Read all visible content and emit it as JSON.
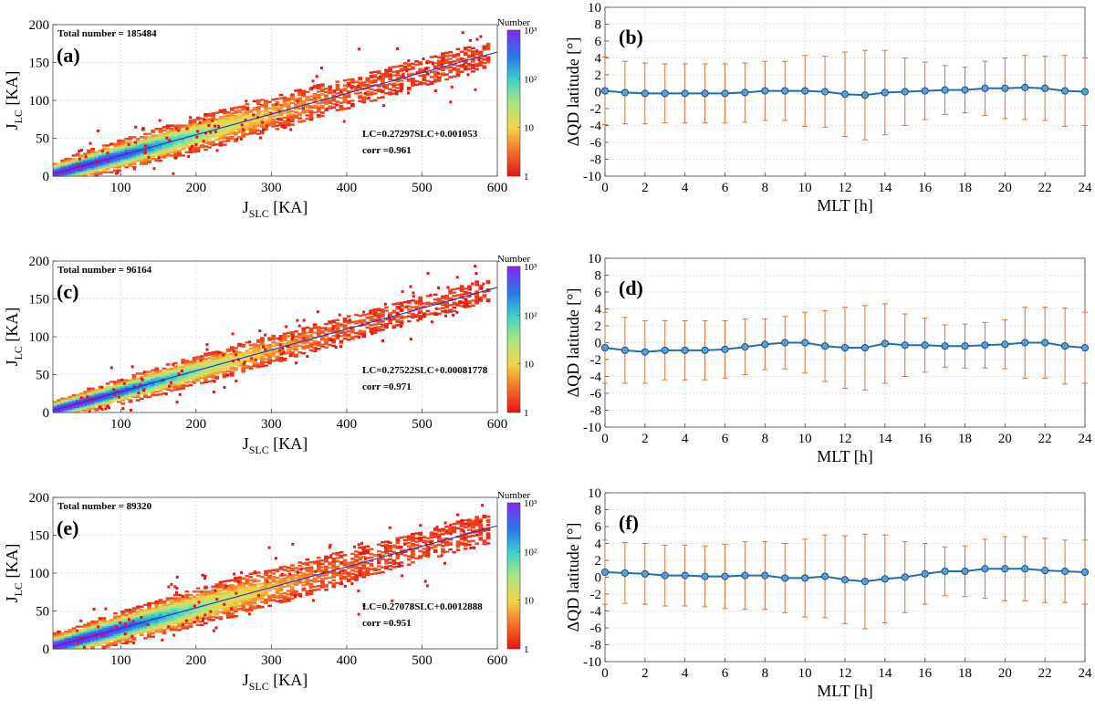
{
  "chart_data": [
    {
      "type": "heatmap",
      "panel": "(a)",
      "total_label": "Total number = 185484",
      "fit_label": "LC=0.27297SLC+0.001053",
      "corr_label": "corr =0.961",
      "fit": {
        "slope": 0.27297,
        "intercept": 0.001053
      },
      "spread": 12,
      "xlabel_main": "J",
      "xlabel_sub": "SLC",
      "xlabel_unit": " [KA]",
      "ylabel_main": "J",
      "ylabel_sub": "LC",
      "ylabel_unit": " [KA]",
      "xlim": [
        10,
        600
      ],
      "ylim": [
        0,
        200
      ],
      "xticks": [
        "100",
        "200",
        "300",
        "400",
        "500",
        "600"
      ],
      "yticks": [
        "0",
        "50",
        "100",
        "150",
        "200"
      ],
      "colorbar": {
        "title": "Number",
        "ticks": [
          "1",
          "10",
          "10²",
          "10³"
        ],
        "scale": "log",
        "range": [
          1,
          1000
        ]
      }
    },
    {
      "type": "line",
      "panel": "(b)",
      "xlabel": "MLT [h]",
      "ylabel": "ΔQD latitude [°]",
      "xlim": [
        0,
        24
      ],
      "ylim": [
        -10,
        10
      ],
      "xticks": [
        "0",
        "2",
        "4",
        "6",
        "8",
        "10",
        "12",
        "14",
        "16",
        "18",
        "20",
        "22",
        "24"
      ],
      "yticks": [
        "-10",
        "-8",
        "-6",
        "-4",
        "-2",
        "0",
        "2",
        "4",
        "6",
        "8",
        "10"
      ],
      "x": [
        0,
        1,
        2,
        3,
        4,
        5,
        6,
        7,
        8,
        9,
        10,
        11,
        12,
        13,
        14,
        15,
        16,
        17,
        18,
        19,
        20,
        21,
        22,
        23,
        24
      ],
      "y": [
        0.1,
        -0.1,
        -0.2,
        -0.2,
        -0.2,
        -0.2,
        -0.2,
        -0.1,
        0.1,
        0.1,
        0.1,
        0.0,
        -0.3,
        -0.4,
        -0.1,
        0.0,
        0.1,
        0.2,
        0.2,
        0.4,
        0.4,
        0.5,
        0.4,
        0.1,
        0.0
      ],
      "err": [
        4.0,
        3.7,
        3.6,
        3.5,
        3.5,
        3.5,
        3.5,
        3.5,
        3.5,
        3.5,
        4.2,
        4.2,
        5.0,
        5.3,
        5.0,
        4.0,
        3.4,
        2.9,
        2.7,
        3.2,
        3.6,
        3.8,
        3.8,
        4.2,
        4.0
      ]
    },
    {
      "type": "heatmap",
      "panel": "(c)",
      "total_label": "Total number = 96164",
      "fit_label": "LC=0.27522SLC+0.00081778",
      "corr_label": "corr =0.971",
      "fit": {
        "slope": 0.27522,
        "intercept": 0.00081778
      },
      "spread": 10,
      "xlabel_main": "J",
      "xlabel_sub": "SLC",
      "xlabel_unit": " [KA]",
      "ylabel_main": "J",
      "ylabel_sub": "LC",
      "ylabel_unit": " [KA]",
      "xlim": [
        10,
        600
      ],
      "ylim": [
        0,
        200
      ],
      "xticks": [
        "100",
        "200",
        "300",
        "400",
        "500",
        "600"
      ],
      "yticks": [
        "0",
        "50",
        "100",
        "150",
        "200"
      ],
      "colorbar": {
        "title": "Number",
        "ticks": [
          "1",
          "10",
          "10²",
          "10³"
        ],
        "scale": "log",
        "range": [
          1,
          1000
        ]
      }
    },
    {
      "type": "line",
      "panel": "(d)",
      "xlabel": "MLT [h]",
      "ylabel": "ΔQD latitude [°]",
      "xlim": [
        0,
        24
      ],
      "ylim": [
        -10,
        10
      ],
      "xticks": [
        "0",
        "2",
        "4",
        "6",
        "8",
        "10",
        "12",
        "14",
        "16",
        "18",
        "20",
        "22",
        "24"
      ],
      "yticks": [
        "-10",
        "-8",
        "-6",
        "-4",
        "-2",
        "0",
        "2",
        "4",
        "6",
        "8",
        "10"
      ],
      "x": [
        0,
        1,
        2,
        3,
        4,
        5,
        6,
        7,
        8,
        9,
        10,
        11,
        12,
        13,
        14,
        15,
        16,
        17,
        18,
        19,
        20,
        21,
        22,
        23,
        24
      ],
      "y": [
        -0.6,
        -0.9,
        -1.1,
        -0.9,
        -0.9,
        -0.9,
        -0.8,
        -0.5,
        -0.2,
        0.0,
        0.0,
        -0.4,
        -0.6,
        -0.6,
        -0.1,
        -0.3,
        -0.3,
        -0.4,
        -0.4,
        -0.3,
        -0.2,
        0.0,
        0.0,
        -0.4,
        -0.6
      ],
      "err": [
        4.2,
        3.9,
        3.7,
        3.5,
        3.5,
        3.5,
        3.4,
        3.3,
        3.0,
        3.1,
        3.6,
        4.2,
        4.8,
        5.0,
        4.7,
        3.7,
        3.2,
        2.5,
        2.6,
        2.7,
        2.9,
        4.2,
        4.2,
        4.5,
        4.2
      ]
    },
    {
      "type": "heatmap",
      "panel": "(e)",
      "total_label": "Total number = 89320",
      "fit_label": "LC=0.27078SLC+0.0012888",
      "corr_label": "corr =0.951",
      "fit": {
        "slope": 0.27078,
        "intercept": 0.0012888
      },
      "spread": 13,
      "xlabel_main": "J",
      "xlabel_sub": "SLC",
      "xlabel_unit": " [KA]",
      "ylabel_main": "J",
      "ylabel_sub": "LC",
      "ylabel_unit": " [KA]",
      "xlim": [
        10,
        600
      ],
      "ylim": [
        0,
        200
      ],
      "xticks": [
        "100",
        "200",
        "300",
        "400",
        "500",
        "600"
      ],
      "yticks": [
        "0",
        "50",
        "100",
        "150",
        "200"
      ],
      "colorbar": {
        "title": "Number",
        "ticks": [
          "1",
          "10",
          "10²",
          "10³"
        ],
        "scale": "log",
        "range": [
          1,
          1000
        ]
      }
    },
    {
      "type": "line",
      "panel": "(f)",
      "xlabel": "MLT [h]",
      "ylabel": "ΔQD latitude [°]",
      "xlim": [
        0,
        24
      ],
      "ylim": [
        -10,
        10
      ],
      "xticks": [
        "0",
        "2",
        "4",
        "6",
        "8",
        "10",
        "12",
        "14",
        "16",
        "18",
        "20",
        "22",
        "24"
      ],
      "yticks": [
        "-10",
        "-8",
        "-6",
        "-4",
        "-2",
        "0",
        "2",
        "4",
        "6",
        "8",
        "10"
      ],
      "x": [
        0,
        1,
        2,
        3,
        4,
        5,
        6,
        7,
        8,
        9,
        10,
        11,
        12,
        13,
        14,
        15,
        16,
        17,
        18,
        19,
        20,
        21,
        22,
        23,
        24
      ],
      "y": [
        0.6,
        0.5,
        0.4,
        0.2,
        0.2,
        0.1,
        0.1,
        0.2,
        0.2,
        -0.1,
        -0.1,
        0.1,
        -0.3,
        -0.5,
        -0.2,
        0.0,
        0.4,
        0.7,
        0.7,
        1.0,
        1.0,
        1.0,
        0.8,
        0.7,
        0.6
      ],
      "err": [
        3.8,
        3.6,
        3.6,
        3.6,
        3.6,
        3.6,
        3.8,
        4.0,
        4.0,
        4.1,
        4.6,
        4.9,
        5.2,
        5.6,
        5.2,
        4.2,
        3.6,
        2.9,
        3.0,
        3.5,
        3.8,
        3.8,
        3.8,
        3.7,
        3.8
      ]
    }
  ]
}
